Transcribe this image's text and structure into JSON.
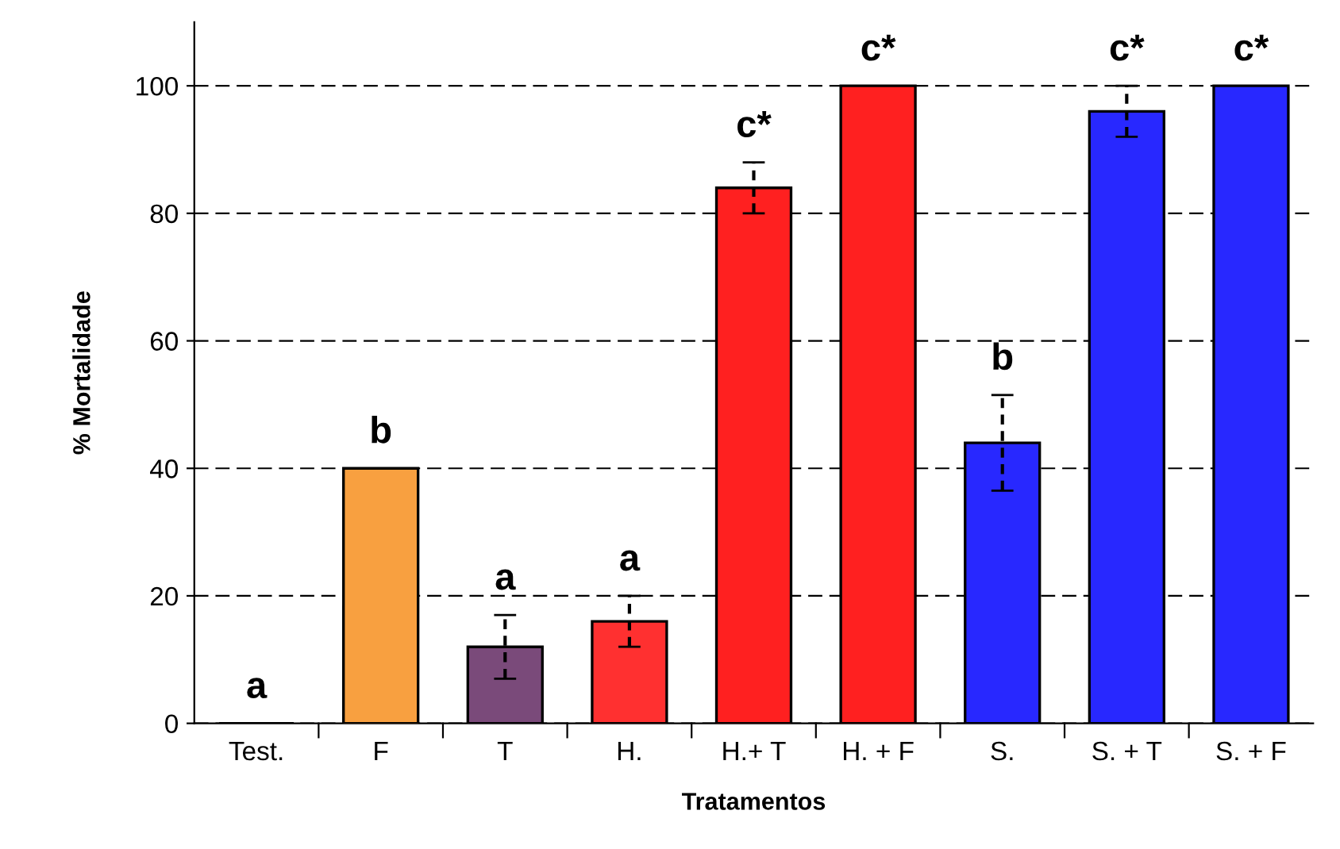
{
  "chart_data": {
    "type": "bar",
    "xlabel": "Tratamentos",
    "ylabel": "% Mortalidade",
    "categories": [
      "Test.",
      "F",
      "T",
      "H.",
      "H.+ T",
      "H. + F",
      "S.",
      "S. + T",
      "S. + F"
    ],
    "values": [
      0,
      40,
      12,
      16,
      84,
      100,
      44,
      96,
      100
    ],
    "colors": [
      "#000000",
      "#f8a040",
      "#7a4a7a",
      "#ff3030",
      "#ff2020",
      "#ff2020",
      "#2828ff",
      "#2828ff",
      "#2828ff"
    ],
    "errors": [
      null,
      null,
      5,
      4,
      4,
      null,
      7.5,
      4,
      null
    ],
    "ylim": [
      0,
      110
    ],
    "yticks": [
      0,
      20,
      40,
      60,
      80,
      100
    ],
    "grid": "y",
    "annotations": [
      {
        "text": "a",
        "x": "Test.",
        "y": 0
      },
      {
        "text": "b",
        "x": "F",
        "y": 40
      },
      {
        "text": "a",
        "x": "T",
        "y": 12
      },
      {
        "text": "a",
        "x": "H.",
        "y": 16
      },
      {
        "text": "c*",
        "x": "H.+ T",
        "y": 84
      },
      {
        "text": "c*",
        "x": "H. + F",
        "y": 100
      },
      {
        "text": "b",
        "x": "S.",
        "y": 44
      },
      {
        "text": "c*",
        "x": "S. + T",
        "y": 96
      },
      {
        "text": "c*",
        "x": "S. + F",
        "y": 100
      }
    ]
  }
}
